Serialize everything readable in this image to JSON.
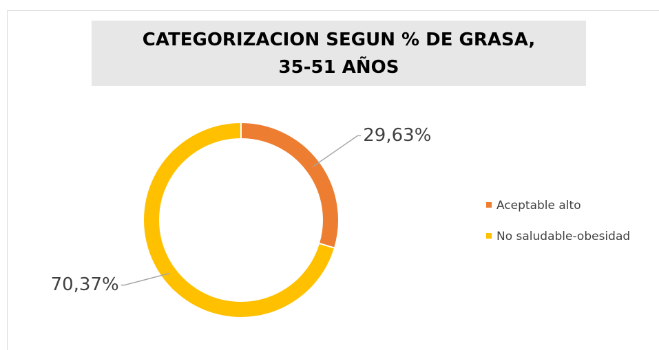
{
  "chart_data": {
    "type": "donut",
    "title": "CATEGORIZACION SEGUN % DE GRASA, 35-51 AÑOS",
    "categories": [
      "Aceptable alto",
      "No saludable-obesidad"
    ],
    "values": [
      29.63,
      70.37
    ],
    "value_labels": [
      "29,63%",
      "70,37%"
    ],
    "colors": [
      "#ed7d31",
      "#ffc000"
    ],
    "legend": "right"
  }
}
